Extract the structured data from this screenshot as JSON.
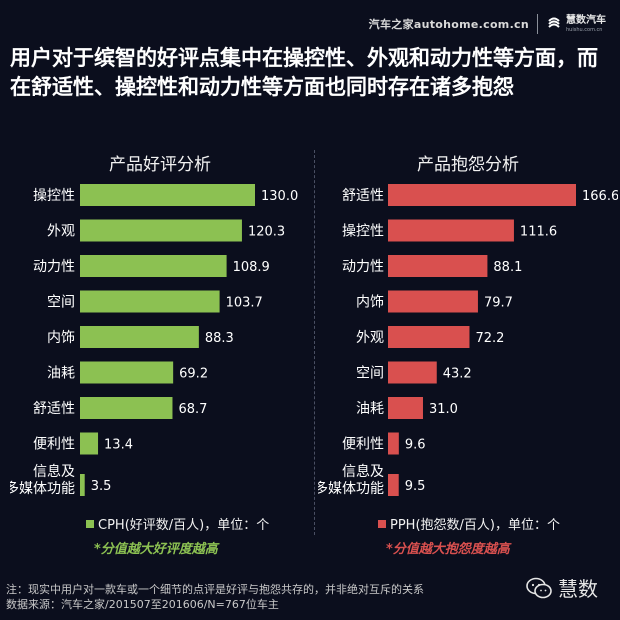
{
  "brand": {
    "source": "汽车之家autohome.com.cn",
    "logo_name": "慧数汽车",
    "logo_sub": "huishu.com.cn"
  },
  "headline": "用户对于缤智的好评点集中在操控性、外观和动力性等方面，而在舒适性、操控性和动力性等方面也同时存在诸多抱怨",
  "chart_data": [
    {
      "type": "bar",
      "orientation": "horizontal",
      "title": "产品好评分析",
      "categories": [
        "操控性",
        "外观",
        "动力性",
        "空间",
        "内饰",
        "油耗",
        "舒适性",
        "便利性",
        "信息及多媒体功能"
      ],
      "values": [
        130.0,
        120.3,
        108.9,
        103.7,
        88.3,
        69.2,
        68.7,
        13.4,
        3.5
      ],
      "value_labels": [
        "130.0",
        "120.3",
        "108.9",
        "103.7",
        "88.3",
        "69.2",
        "68.7",
        "13.4",
        "3.5"
      ],
      "color": "#8cc152",
      "legend": "CPH(好评数/百人)，单位：个",
      "note": "*分值越大好评度越高",
      "note_color": "#8cc152"
    },
    {
      "type": "bar",
      "orientation": "horizontal",
      "title": "产品抱怨分析",
      "categories": [
        "舒适性",
        "操控性",
        "动力性",
        "内饰",
        "外观",
        "空间",
        "油耗",
        "便利性",
        "信息及多媒体功能"
      ],
      "values": [
        166.6,
        111.6,
        88.1,
        79.7,
        72.2,
        43.2,
        31.0,
        9.6,
        9.5
      ],
      "value_labels": [
        "166.6",
        "111.6",
        "88.1",
        "79.7",
        "72.2",
        "43.2",
        "31.0",
        "9.6",
        "9.5"
      ],
      "color": "#d9504f",
      "legend": "PPH(抱怨数/百人)，单位：个",
      "note": "*分值越大抱怨度越高",
      "note_color": "#d9504f"
    }
  ],
  "footer": {
    "note": "注：现实中用户对一款车或一个细节的点评是好评与抱怨共存的，并非绝对互斥的关系",
    "source": "数据来源：汽车之家/201507至201606/N=767位车主"
  },
  "wechat": {
    "label": "慧数"
  }
}
